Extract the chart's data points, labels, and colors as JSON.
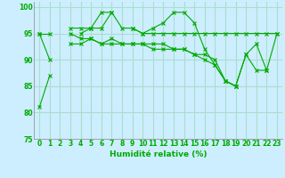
{
  "xlabel": "Humidité relative (%)",
  "background_color": "#cceeff",
  "grid_color": "#aaddcc",
  "line_color": "#00aa00",
  "xlim": [
    -0.5,
    23.5
  ],
  "ylim": [
    75,
    101
  ],
  "yticks": [
    75,
    80,
    85,
    90,
    95,
    100
  ],
  "xticks": [
    0,
    1,
    2,
    3,
    4,
    5,
    6,
    7,
    8,
    9,
    10,
    11,
    12,
    13,
    14,
    15,
    16,
    17,
    18,
    19,
    20,
    21,
    22,
    23
  ],
  "series": [
    [
      81,
      87,
      null,
      null,
      95,
      96,
      99,
      99,
      null,
      96,
      95,
      96,
      97,
      99,
      99,
      97,
      92,
      89,
      86,
      85,
      91,
      93,
      88,
      95
    ],
    [
      95,
      95,
      null,
      96,
      96,
      96,
      96,
      99,
      96,
      96,
      95,
      95,
      95,
      95,
      95,
      95,
      95,
      95,
      95,
      95,
      95,
      95,
      95,
      95
    ],
    [
      95,
      90,
      null,
      93,
      93,
      94,
      93,
      94,
      93,
      93,
      93,
      93,
      93,
      92,
      92,
      91,
      91,
      90,
      86,
      85,
      91,
      88,
      88,
      null
    ],
    [
      null,
      null,
      null,
      95,
      94,
      94,
      93,
      93,
      93,
      93,
      93,
      92,
      92,
      92,
      92,
      91,
      90,
      89,
      86,
      85,
      null,
      null,
      null,
      null
    ]
  ]
}
